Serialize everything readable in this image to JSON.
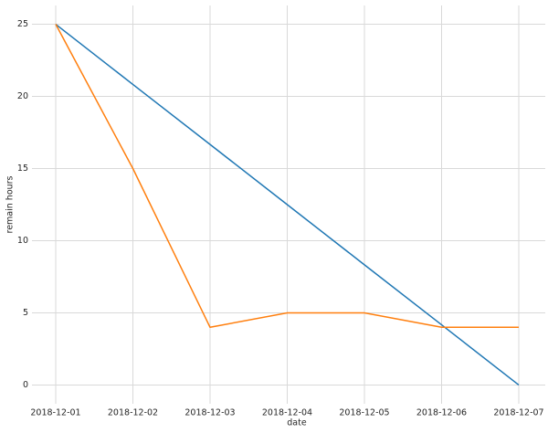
{
  "chart_data": {
    "type": "line",
    "x": [
      "2018-12-01",
      "2018-12-02",
      "2018-12-03",
      "2018-12-04",
      "2018-12-05",
      "2018-12-06",
      "2018-12-07"
    ],
    "series": [
      {
        "color": "#1f77b4",
        "values": [
          25,
          20.83,
          16.67,
          12.5,
          8.33,
          4.17,
          0
        ]
      },
      {
        "color": "#ff7f0e",
        "values": [
          25,
          15,
          4,
          5,
          5,
          4,
          4
        ]
      }
    ],
    "xlabel": "date",
    "ylabel": "remain hours",
    "ylim": [
      -1.3,
      26.3
    ],
    "yticks": [
      0,
      5,
      10,
      15,
      20,
      25
    ],
    "grid": true
  }
}
